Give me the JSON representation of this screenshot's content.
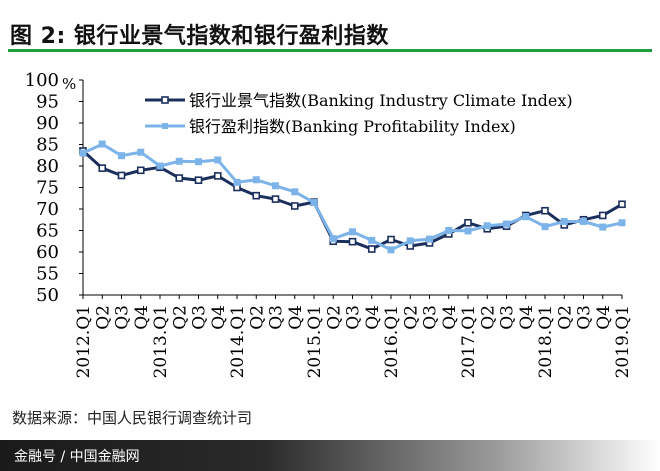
{
  "header": {
    "title": "图 2:  银行业景气指数和银行盈利指数"
  },
  "chart_data": {
    "type": "line",
    "title": "图 2:  银行业景气指数和银行盈利指数",
    "ylabel_unit": "%",
    "ylim": [
      50,
      100
    ],
    "yticks": [
      "50",
      "55",
      "60",
      "65",
      "70",
      "75",
      "80",
      "85",
      "90",
      "95",
      "100"
    ],
    "categories": [
      "2012.Q1",
      "Q2",
      "Q3",
      "Q4",
      "2013.Q1",
      "Q2",
      "Q3",
      "Q4",
      "2014.Q1",
      "Q2",
      "Q3",
      "Q4",
      "2015.Q1",
      "Q2",
      "Q3",
      "Q4",
      "2016.Q1",
      "Q2",
      "Q3",
      "Q4",
      "2017.Q1",
      "Q2",
      "Q3",
      "Q4",
      "2018.Q1",
      "Q2",
      "Q3",
      "Q4",
      "2019.Q1"
    ],
    "legend_position": "top",
    "series": [
      {
        "name": "银行业景气指数(Banking Industry Climate Index)",
        "color": "#1b2f5c",
        "marker": "square-open",
        "values": [
          83.5,
          79.5,
          77.8,
          79.0,
          79.7,
          77.2,
          76.7,
          77.7,
          75.0,
          73.1,
          72.3,
          70.7,
          71.6,
          62.5,
          62.4,
          60.7,
          62.9,
          61.4,
          62.1,
          64.2,
          66.8,
          65.4,
          66.0,
          68.5,
          69.6,
          66.3,
          67.5,
          68.5,
          71.1
        ]
      },
      {
        "name": "银行盈利指数(Banking Profitability Index)",
        "color": "#7cb4ea",
        "marker": "square-filled",
        "values": [
          83.0,
          85.1,
          82.4,
          83.2,
          80.0,
          81.1,
          81.0,
          81.4,
          76.2,
          76.8,
          75.4,
          74.0,
          71.5,
          63.1,
          64.7,
          62.7,
          60.5,
          62.6,
          63.0,
          65.0,
          64.9,
          66.1,
          66.5,
          68.2,
          65.9,
          67.1,
          67.1,
          65.8,
          66.8
        ]
      }
    ]
  },
  "source": {
    "text": "数据来源：中国人民银行调查统计司"
  },
  "footer": {
    "text": "金融号 / 中国金融网"
  }
}
